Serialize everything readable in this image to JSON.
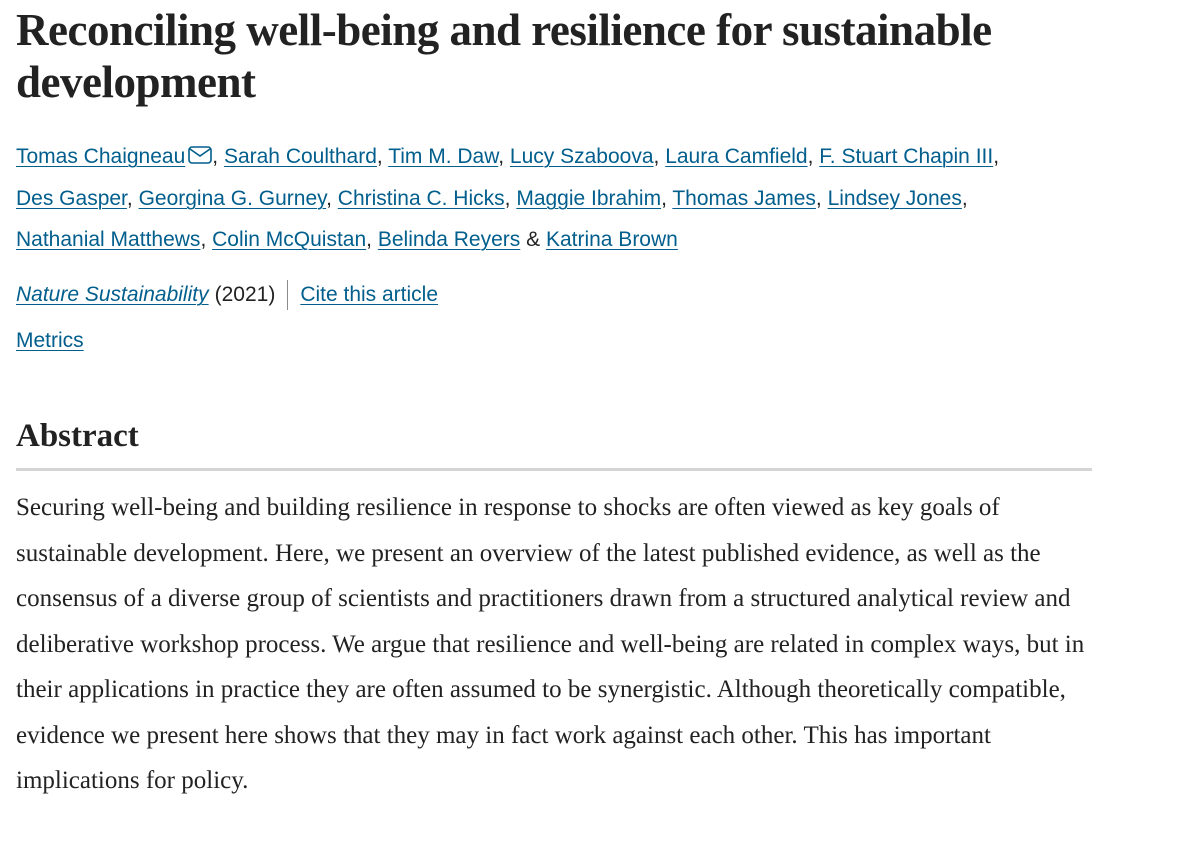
{
  "article": {
    "title": "Reconciling well-being and resilience for sustainable development",
    "authors": [
      "Tomas Chaigneau",
      "Sarah Coulthard",
      "Tim M. Daw",
      "Lucy Szaboova",
      "Laura Camfield",
      "F. Stuart Chapin III",
      "Des Gasper",
      "Georgina G. Gurney",
      "Christina C. Hicks",
      "Maggie Ibrahim",
      "Thomas James",
      "Lindsey Jones",
      "Nathanial Matthews",
      "Colin McQuistan",
      "Belinda Reyers",
      "Katrina Brown"
    ],
    "separators": {
      "comma": ", ",
      "and": " & "
    },
    "journal": "Nature Sustainability",
    "year": "(2021)",
    "cite_label": "Cite this article",
    "metrics_label": "Metrics"
  },
  "abstract": {
    "heading": "Abstract",
    "text": "Securing well-being and building resilience in response to shocks are often viewed as key goals of sustainable development. Here, we present an overview of the latest published evidence, as well as the consensus of a diverse group of scientists and practitioners drawn from a structured analytical review and deliberative workshop process. We argue that resilience and well-being are related in complex ways, but in their applications in practice they are often assumed to be synergistic. Although theoretically compatible, evidence we present here shows that they may in fact work against each other. This has important implications for policy."
  },
  "icons": {
    "corresponding_author": "mail-icon"
  },
  "colors": {
    "link": "#025e8d",
    "text": "#222222",
    "rule": "#d5d5d5"
  }
}
